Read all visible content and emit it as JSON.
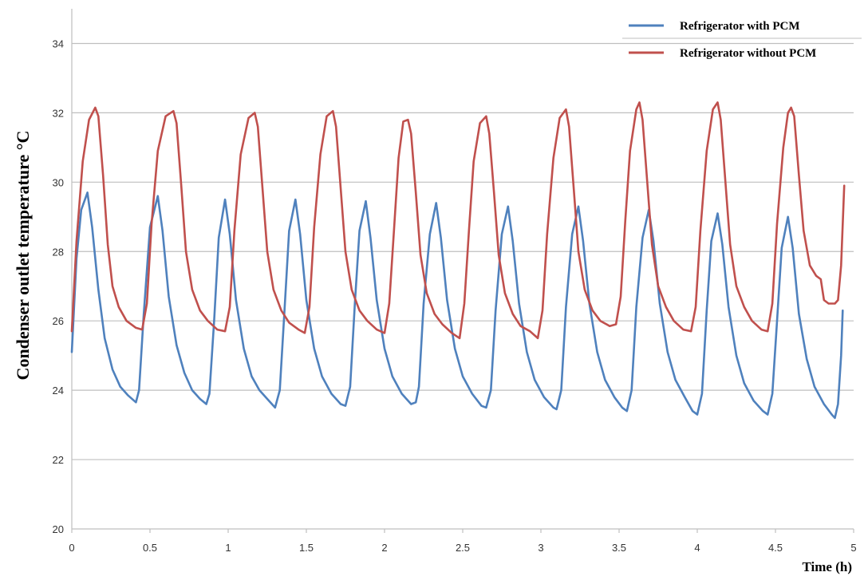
{
  "chart_data": {
    "type": "line",
    "xlabel": "Time (h)",
    "ylabel": "Condenser outlet temperature  °C",
    "xlim": [
      0,
      5
    ],
    "ylim": [
      20,
      35
    ],
    "x_ticks": [
      "0",
      "0.5",
      "1",
      "1.5",
      "2",
      "2.5",
      "3",
      "3.5",
      "4",
      "4.5",
      "5"
    ],
    "y_ticks": [
      "20",
      "22",
      "24",
      "26",
      "28",
      "30",
      "32",
      "34"
    ],
    "grid": "horizontal",
    "legend_position": "top-right",
    "series": [
      {
        "name": "Refrigerator with PCM",
        "color": "#4f81bd",
        "points": [
          [
            0.0,
            25.1
          ],
          [
            0.03,
            27.8
          ],
          [
            0.06,
            29.2
          ],
          [
            0.1,
            29.7
          ],
          [
            0.13,
            28.7
          ],
          [
            0.17,
            26.9
          ],
          [
            0.21,
            25.5
          ],
          [
            0.26,
            24.6
          ],
          [
            0.31,
            24.1
          ],
          [
            0.36,
            23.85
          ],
          [
            0.41,
            23.65
          ],
          [
            0.43,
            24.0
          ],
          [
            0.46,
            26.2
          ],
          [
            0.5,
            28.7
          ],
          [
            0.55,
            29.6
          ],
          [
            0.58,
            28.6
          ],
          [
            0.62,
            26.7
          ],
          [
            0.67,
            25.3
          ],
          [
            0.72,
            24.5
          ],
          [
            0.77,
            24.0
          ],
          [
            0.82,
            23.75
          ],
          [
            0.86,
            23.6
          ],
          [
            0.88,
            23.9
          ],
          [
            0.91,
            26.0
          ],
          [
            0.94,
            28.4
          ],
          [
            0.98,
            29.5
          ],
          [
            1.01,
            28.5
          ],
          [
            1.05,
            26.6
          ],
          [
            1.1,
            25.2
          ],
          [
            1.15,
            24.4
          ],
          [
            1.2,
            24.0
          ],
          [
            1.26,
            23.7
          ],
          [
            1.3,
            23.5
          ],
          [
            1.33,
            24.0
          ],
          [
            1.36,
            26.3
          ],
          [
            1.39,
            28.6
          ],
          [
            1.43,
            29.5
          ],
          [
            1.46,
            28.5
          ],
          [
            1.5,
            26.6
          ],
          [
            1.55,
            25.2
          ],
          [
            1.6,
            24.4
          ],
          [
            1.66,
            23.9
          ],
          [
            1.72,
            23.6
          ],
          [
            1.75,
            23.55
          ],
          [
            1.78,
            24.1
          ],
          [
            1.81,
            26.5
          ],
          [
            1.84,
            28.6
          ],
          [
            1.88,
            29.45
          ],
          [
            1.91,
            28.4
          ],
          [
            1.95,
            26.6
          ],
          [
            2.0,
            25.2
          ],
          [
            2.05,
            24.4
          ],
          [
            2.11,
            23.9
          ],
          [
            2.17,
            23.6
          ],
          [
            2.2,
            23.65
          ],
          [
            2.22,
            24.1
          ],
          [
            2.25,
            26.5
          ],
          [
            2.29,
            28.5
          ],
          [
            2.33,
            29.4
          ],
          [
            2.36,
            28.4
          ],
          [
            2.4,
            26.6
          ],
          [
            2.45,
            25.2
          ],
          [
            2.5,
            24.4
          ],
          [
            2.56,
            23.9
          ],
          [
            2.62,
            23.55
          ],
          [
            2.65,
            23.5
          ],
          [
            2.68,
            24.0
          ],
          [
            2.71,
            26.3
          ],
          [
            2.75,
            28.5
          ],
          [
            2.79,
            29.3
          ],
          [
            2.82,
            28.3
          ],
          [
            2.86,
            26.5
          ],
          [
            2.91,
            25.1
          ],
          [
            2.96,
            24.3
          ],
          [
            3.02,
            23.8
          ],
          [
            3.08,
            23.5
          ],
          [
            3.1,
            23.45
          ],
          [
            3.13,
            24.0
          ],
          [
            3.16,
            26.4
          ],
          [
            3.2,
            28.5
          ],
          [
            3.24,
            29.3
          ],
          [
            3.27,
            28.3
          ],
          [
            3.31,
            26.5
          ],
          [
            3.36,
            25.1
          ],
          [
            3.41,
            24.3
          ],
          [
            3.47,
            23.8
          ],
          [
            3.52,
            23.5
          ],
          [
            3.55,
            23.4
          ],
          [
            3.58,
            24.0
          ],
          [
            3.61,
            26.4
          ],
          [
            3.65,
            28.4
          ],
          [
            3.69,
            29.2
          ],
          [
            3.72,
            28.3
          ],
          [
            3.76,
            26.5
          ],
          [
            3.81,
            25.1
          ],
          [
            3.86,
            24.3
          ],
          [
            3.92,
            23.8
          ],
          [
            3.97,
            23.4
          ],
          [
            4.0,
            23.3
          ],
          [
            4.03,
            23.9
          ],
          [
            4.06,
            26.3
          ],
          [
            4.09,
            28.3
          ],
          [
            4.13,
            29.1
          ],
          [
            4.16,
            28.2
          ],
          [
            4.2,
            26.4
          ],
          [
            4.25,
            25.0
          ],
          [
            4.3,
            24.2
          ],
          [
            4.36,
            23.7
          ],
          [
            4.42,
            23.4
          ],
          [
            4.45,
            23.3
          ],
          [
            4.48,
            23.9
          ],
          [
            4.51,
            26.0
          ],
          [
            4.54,
            28.1
          ],
          [
            4.58,
            29.0
          ],
          [
            4.61,
            28.1
          ],
          [
            4.65,
            26.2
          ],
          [
            4.7,
            24.9
          ],
          [
            4.75,
            24.1
          ],
          [
            4.81,
            23.6
          ],
          [
            4.86,
            23.3
          ],
          [
            4.88,
            23.2
          ],
          [
            4.9,
            23.6
          ],
          [
            4.92,
            25.0
          ],
          [
            4.93,
            26.3
          ]
        ]
      },
      {
        "name": "Refrigerator without  PCM",
        "color": "#c0504d",
        "points": [
          [
            0.0,
            25.7
          ],
          [
            0.03,
            28.3
          ],
          [
            0.07,
            30.6
          ],
          [
            0.11,
            31.8
          ],
          [
            0.15,
            32.15
          ],
          [
            0.17,
            31.9
          ],
          [
            0.2,
            30.2
          ],
          [
            0.23,
            28.2
          ],
          [
            0.26,
            27.0
          ],
          [
            0.3,
            26.4
          ],
          [
            0.35,
            26.0
          ],
          [
            0.41,
            25.8
          ],
          [
            0.45,
            25.75
          ],
          [
            0.48,
            26.5
          ],
          [
            0.51,
            28.8
          ],
          [
            0.55,
            30.9
          ],
          [
            0.6,
            31.9
          ],
          [
            0.65,
            32.05
          ],
          [
            0.67,
            31.7
          ],
          [
            0.7,
            29.9
          ],
          [
            0.73,
            28.0
          ],
          [
            0.77,
            26.9
          ],
          [
            0.82,
            26.3
          ],
          [
            0.87,
            26.0
          ],
          [
            0.93,
            25.75
          ],
          [
            0.98,
            25.7
          ],
          [
            1.01,
            26.4
          ],
          [
            1.04,
            28.6
          ],
          [
            1.08,
            30.8
          ],
          [
            1.13,
            31.85
          ],
          [
            1.17,
            32.0
          ],
          [
            1.19,
            31.6
          ],
          [
            1.22,
            29.8
          ],
          [
            1.25,
            28.0
          ],
          [
            1.29,
            26.9
          ],
          [
            1.34,
            26.3
          ],
          [
            1.39,
            25.95
          ],
          [
            1.45,
            25.75
          ],
          [
            1.49,
            25.65
          ],
          [
            1.52,
            26.4
          ],
          [
            1.55,
            28.7
          ],
          [
            1.59,
            30.8
          ],
          [
            1.63,
            31.9
          ],
          [
            1.67,
            32.05
          ],
          [
            1.69,
            31.6
          ],
          [
            1.72,
            29.8
          ],
          [
            1.75,
            28.0
          ],
          [
            1.79,
            26.9
          ],
          [
            1.84,
            26.3
          ],
          [
            1.89,
            26.0
          ],
          [
            1.95,
            25.75
          ],
          [
            2.0,
            25.65
          ],
          [
            2.03,
            26.5
          ],
          [
            2.06,
            28.6
          ],
          [
            2.09,
            30.7
          ],
          [
            2.12,
            31.75
          ],
          [
            2.15,
            31.8
          ],
          [
            2.17,
            31.4
          ],
          [
            2.2,
            29.7
          ],
          [
            2.23,
            27.9
          ],
          [
            2.27,
            26.8
          ],
          [
            2.32,
            26.2
          ],
          [
            2.37,
            25.9
          ],
          [
            2.43,
            25.65
          ],
          [
            2.48,
            25.5
          ],
          [
            2.51,
            26.5
          ],
          [
            2.54,
            28.6
          ],
          [
            2.57,
            30.6
          ],
          [
            2.61,
            31.7
          ],
          [
            2.65,
            31.9
          ],
          [
            2.67,
            31.4
          ],
          [
            2.7,
            29.7
          ],
          [
            2.73,
            27.9
          ],
          [
            2.77,
            26.8
          ],
          [
            2.82,
            26.2
          ],
          [
            2.87,
            25.85
          ],
          [
            2.93,
            25.7
          ],
          [
            2.98,
            25.5
          ],
          [
            3.01,
            26.3
          ],
          [
            3.04,
            28.5
          ],
          [
            3.08,
            30.7
          ],
          [
            3.12,
            31.85
          ],
          [
            3.16,
            32.1
          ],
          [
            3.18,
            31.6
          ],
          [
            3.21,
            29.8
          ],
          [
            3.24,
            28.0
          ],
          [
            3.28,
            26.9
          ],
          [
            3.33,
            26.3
          ],
          [
            3.38,
            26.0
          ],
          [
            3.44,
            25.85
          ],
          [
            3.48,
            25.9
          ],
          [
            3.51,
            26.7
          ],
          [
            3.54,
            28.9
          ],
          [
            3.57,
            30.9
          ],
          [
            3.61,
            32.1
          ],
          [
            3.63,
            32.3
          ],
          [
            3.65,
            31.8
          ],
          [
            3.68,
            30.0
          ],
          [
            3.71,
            28.2
          ],
          [
            3.75,
            27.0
          ],
          [
            3.8,
            26.4
          ],
          [
            3.85,
            26.0
          ],
          [
            3.91,
            25.75
          ],
          [
            3.96,
            25.7
          ],
          [
            3.99,
            26.4
          ],
          [
            4.02,
            28.6
          ],
          [
            4.06,
            30.9
          ],
          [
            4.1,
            32.1
          ],
          [
            4.13,
            32.3
          ],
          [
            4.15,
            31.8
          ],
          [
            4.18,
            30.0
          ],
          [
            4.21,
            28.2
          ],
          [
            4.25,
            27.0
          ],
          [
            4.3,
            26.4
          ],
          [
            4.35,
            26.0
          ],
          [
            4.41,
            25.75
          ],
          [
            4.45,
            25.7
          ],
          [
            4.48,
            26.5
          ],
          [
            4.51,
            28.8
          ],
          [
            4.55,
            31.0
          ],
          [
            4.58,
            32.0
          ],
          [
            4.6,
            32.15
          ],
          [
            4.62,
            31.9
          ],
          [
            4.65,
            30.2
          ],
          [
            4.68,
            28.6
          ],
          [
            4.72,
            27.6
          ],
          [
            4.76,
            27.3
          ],
          [
            4.79,
            27.2
          ],
          [
            4.81,
            26.6
          ],
          [
            4.84,
            26.5
          ],
          [
            4.88,
            26.5
          ],
          [
            4.9,
            26.6
          ],
          [
            4.92,
            27.6
          ],
          [
            4.94,
            29.9
          ]
        ]
      }
    ]
  }
}
